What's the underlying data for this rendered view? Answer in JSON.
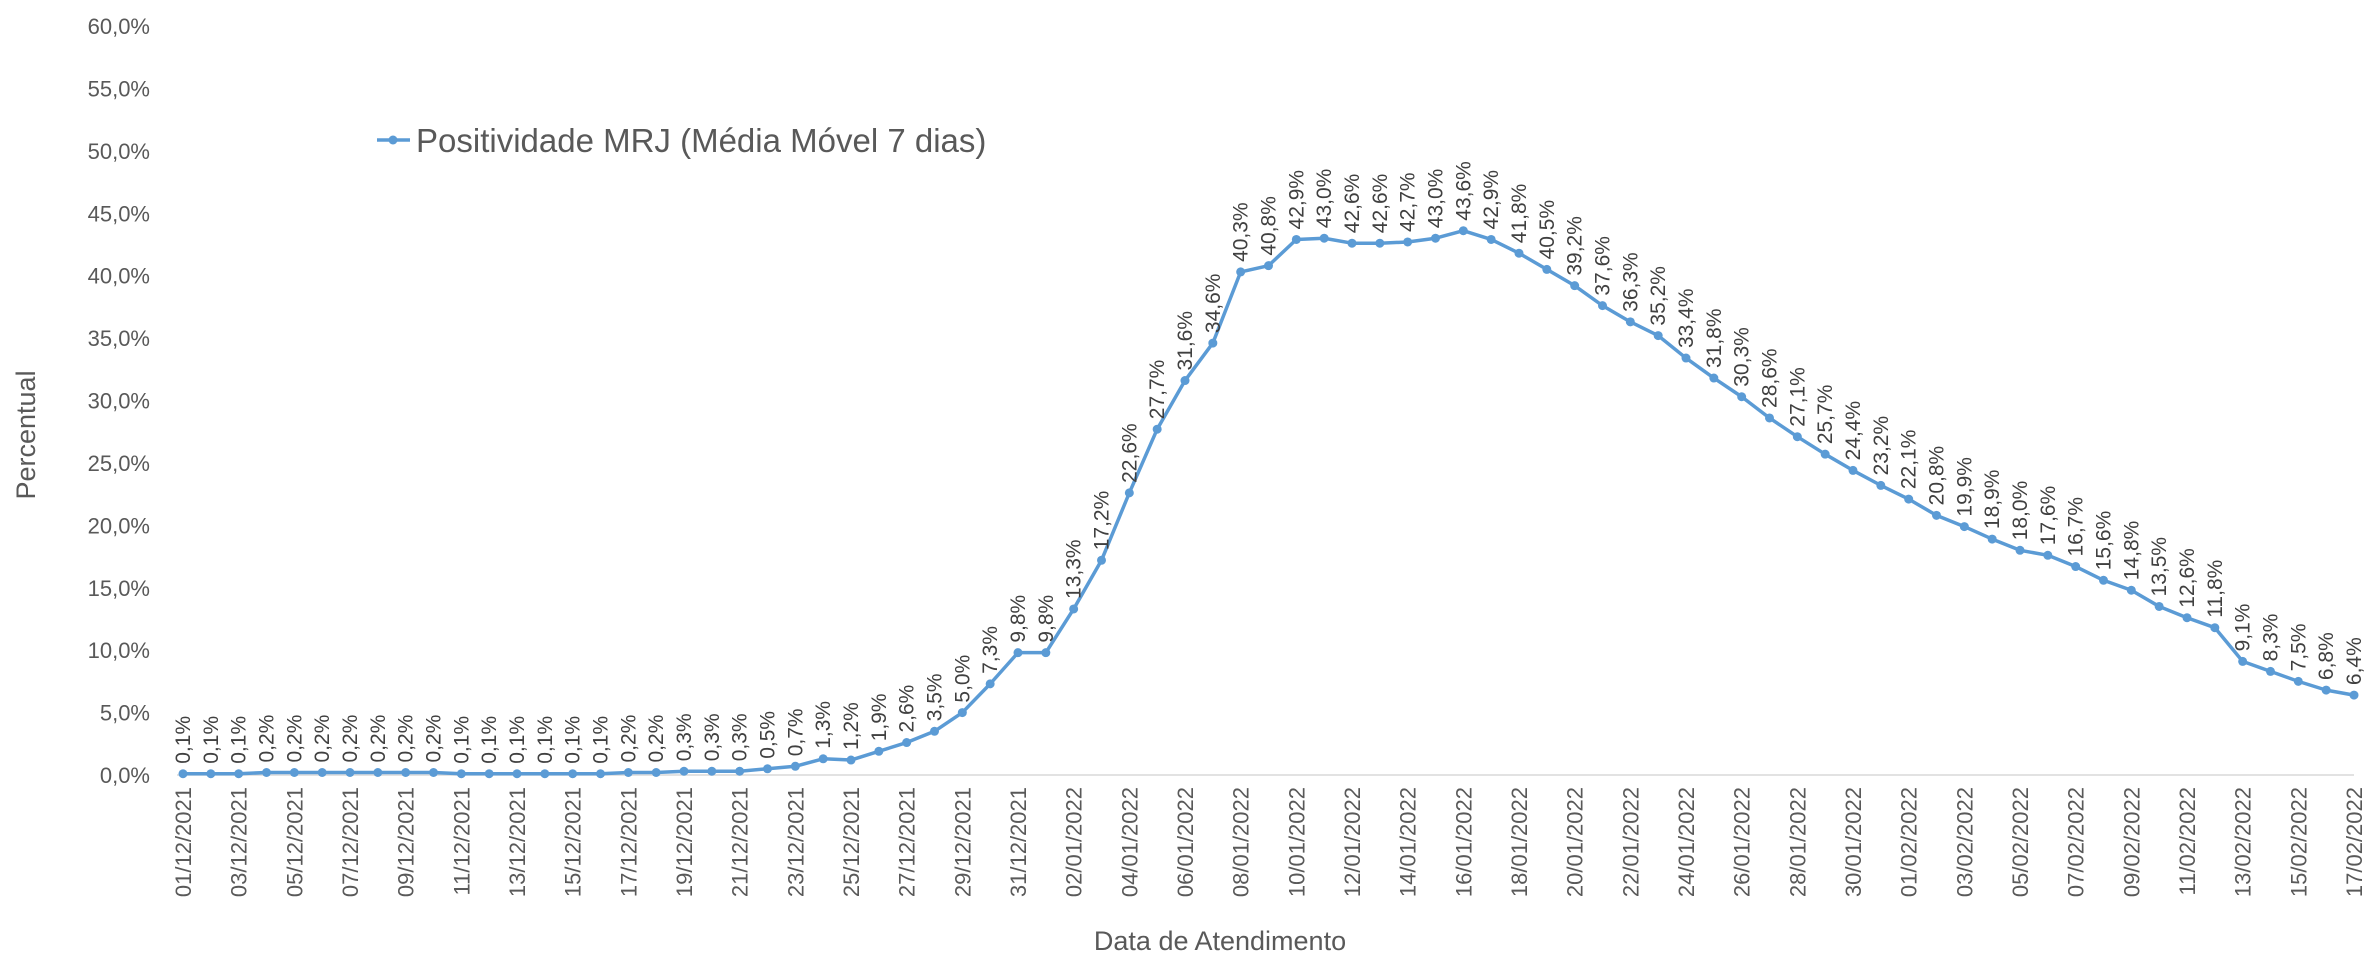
{
  "chart_data": {
    "type": "line",
    "y_label": "Percentual",
    "x_label": "Data de Atendimento",
    "legend": "top-left",
    "categories": [
      "01/12/2021",
      null,
      "03/12/2021",
      null,
      "05/12/2021",
      null,
      "07/12/2021",
      null,
      "09/12/2021",
      null,
      "11/12/2021",
      null,
      "13/12/2021",
      null,
      "15/12/2021",
      null,
      "17/12/2021",
      null,
      "19/12/2021",
      null,
      "21/12/2021",
      null,
      "23/12/2021",
      null,
      "25/12/2021",
      null,
      "27/12/2021",
      null,
      "29/12/2021",
      null,
      "31/12/2021",
      null,
      "02/01/2022",
      null,
      "04/01/2022",
      null,
      "06/01/2022",
      null,
      "08/01/2022",
      null,
      "10/01/2022",
      null,
      "12/01/2022",
      null,
      "14/01/2022",
      null,
      "16/01/2022",
      null,
      "18/01/2022",
      null,
      "20/01/2022",
      null,
      "22/01/2022",
      null,
      "24/01/2022",
      null,
      "26/01/2022",
      null,
      "28/01/2022",
      null,
      "30/01/2022",
      null,
      "01/02/2022",
      null,
      "03/02/2022",
      null,
      "05/02/2022",
      null,
      "07/02/2022",
      null,
      "09/02/2022",
      null,
      "11/02/2022",
      null,
      "13/02/2022",
      null,
      "15/02/2022",
      null,
      "17/02/2022"
    ],
    "series": [
      {
        "name": "Positividade MRJ (Média Móvel 7 dias)",
        "color": "#5b9bd5",
        "values": [
          0.1,
          0.1,
          0.1,
          0.2,
          0.2,
          0.2,
          0.2,
          0.2,
          0.2,
          0.2,
          0.1,
          0.1,
          0.1,
          0.1,
          0.1,
          0.1,
          0.2,
          0.2,
          0.3,
          0.3,
          0.3,
          0.5,
          0.7,
          1.3,
          1.2,
          1.9,
          2.6,
          3.5,
          5.0,
          7.3,
          9.8,
          9.8,
          13.3,
          17.2,
          22.6,
          27.7,
          31.6,
          34.6,
          40.3,
          40.8,
          42.9,
          43.0,
          42.6,
          42.6,
          42.7,
          43.0,
          43.6,
          42.9,
          41.8,
          40.5,
          39.2,
          37.6,
          36.3,
          35.2,
          33.4,
          31.8,
          30.3,
          28.6,
          27.1,
          25.7,
          24.4,
          23.2,
          22.1,
          20.8,
          19.9,
          18.9,
          18.0,
          17.6,
          16.7,
          15.6,
          14.8,
          13.5,
          12.6,
          11.8,
          9.1,
          8.3,
          7.5,
          6.8,
          6.4
        ],
        "value_labels": [
          "0,1%",
          "0,1%",
          "0,1%",
          "0,2%",
          "0,2%",
          "0,2%",
          "0,2%",
          "0,2%",
          "0,2%",
          "0,2%",
          "0,1%",
          "0,1%",
          "0,1%",
          "0,1%",
          "0,1%",
          "0,1%",
          "0,2%",
          "0,2%",
          "0,3%",
          "0,3%",
          "0,3%",
          "0,5%",
          "0,7%",
          "1,3%",
          "1,2%",
          "1,9%",
          "2,6%",
          "3,5%",
          "5,0%",
          "7,3%",
          "9,8%",
          "9,8%",
          "13,3%",
          "17,2%",
          "22,6%",
          "27,7%",
          "31,6%",
          "34,6%",
          "40,3%",
          "40,8%",
          "42,9%",
          "43,0%",
          "42,6%",
          "42,6%",
          "42,7%",
          "43,0%",
          "43,6%",
          "42,9%",
          "41,8%",
          "40,5%",
          "39,2%",
          "37,6%",
          "36,3%",
          "35,2%",
          "33,4%",
          "31,8%",
          "30,3%",
          "28,6%",
          "27,1%",
          "25,7%",
          "24,4%",
          "23,2%",
          "22,1%",
          "20,8%",
          "19,9%",
          "18,9%",
          "18,0%",
          "17,6%",
          "16,7%",
          "15,6%",
          "14,8%",
          "13,5%",
          "12,6%",
          "11,8%",
          "9,1%",
          "8,3%",
          "7,5%",
          "6,8%",
          "6,4%"
        ]
      }
    ],
    "ylim": [
      0,
      60
    ],
    "yticks": [
      {
        "value": 0,
        "label": "0,0%"
      },
      {
        "value": 5,
        "label": "5,0%"
      },
      {
        "value": 10,
        "label": "10,0%"
      },
      {
        "value": 15,
        "label": "15,0%"
      },
      {
        "value": 20,
        "label": "20,0%"
      },
      {
        "value": 25,
        "label": "25,0%"
      },
      {
        "value": 30,
        "label": "30,0%"
      },
      {
        "value": 35,
        "label": "35,0%"
      },
      {
        "value": 40,
        "label": "40,0%"
      },
      {
        "value": 45,
        "label": "45,0%"
      },
      {
        "value": 50,
        "label": "50,0%"
      },
      {
        "value": 55,
        "label": "55,0%"
      },
      {
        "value": 60,
        "label": "60,0%"
      }
    ],
    "grid": false
  }
}
